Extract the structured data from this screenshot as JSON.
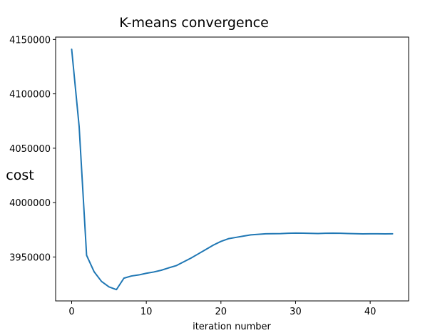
{
  "chart_data": {
    "type": "line",
    "title": "K-means convergence",
    "xlabel": "iteration number",
    "ylabel": "cost",
    "xlim": [
      -2.15,
      45.15
    ],
    "ylim": [
      3909600,
      4152200
    ],
    "xticks": [
      0,
      10,
      20,
      30,
      40
    ],
    "yticks": [
      3950000,
      4000000,
      4050000,
      4100000,
      4150000
    ],
    "xtick_labels": [
      "0",
      "10",
      "20",
      "30",
      "40"
    ],
    "ytick_labels": [
      "3950000",
      "4000000",
      "4050000",
      "4100000",
      "4150000"
    ],
    "grid": false,
    "line_color": "#1f77b4",
    "series": [
      {
        "x": [
          0,
          1,
          2,
          3,
          4,
          5,
          6,
          7,
          8,
          9,
          10,
          11,
          12,
          13,
          14,
          15,
          16,
          17,
          18,
          19,
          20,
          21,
          22,
          23,
          24,
          25,
          26,
          27,
          28,
          29,
          30,
          31,
          32,
          33,
          34,
          35,
          36,
          37,
          38,
          39,
          40,
          41,
          42,
          43
        ],
        "y": [
          4141000,
          4070000,
          3951500,
          3936500,
          3927500,
          3922500,
          3920000,
          3930500,
          3932500,
          3933500,
          3935000,
          3936200,
          3937800,
          3940000,
          3942000,
          3945500,
          3949000,
          3953000,
          3957000,
          3961000,
          3964300,
          3966800,
          3968000,
          3969200,
          3970300,
          3970800,
          3971300,
          3971400,
          3971500,
          3971800,
          3972000,
          3971900,
          3971700,
          3971600,
          3971800,
          3971900,
          3971800,
          3971600,
          3971400,
          3971200,
          3971300,
          3971300,
          3971200,
          3971300
        ]
      }
    ]
  }
}
